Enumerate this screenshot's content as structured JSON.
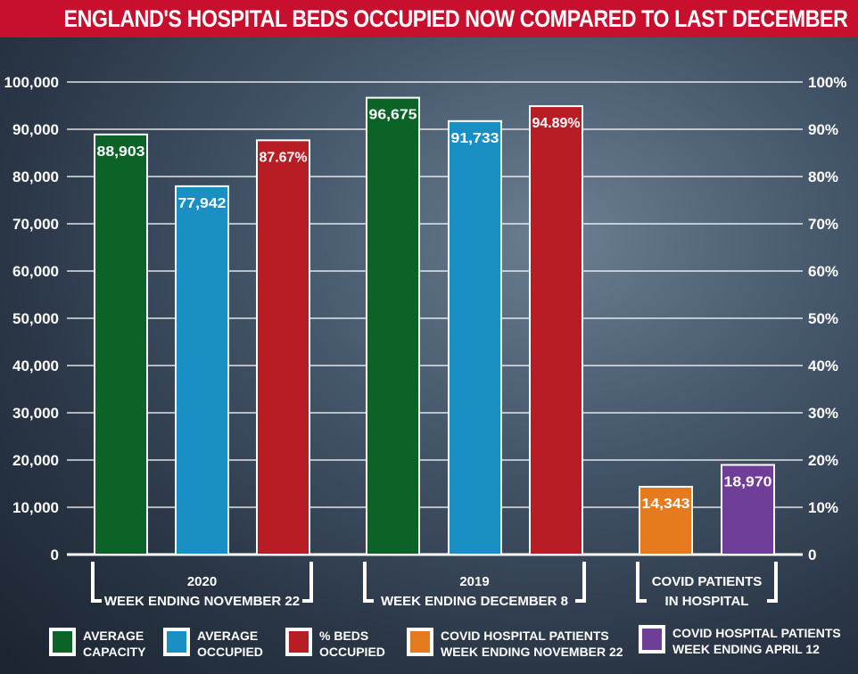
{
  "chart_data": {
    "type": "bar",
    "title": "ENGLAND'S HOSPITAL BEDS OCCUPIED NOW COMPARED TO LAST DECEMBER",
    "left_axis": {
      "range": [
        0,
        100000
      ],
      "ticks": [
        "0",
        "10,000",
        "20,000",
        "30,000",
        "40,000",
        "50,000",
        "60,000",
        "70,000",
        "80,000",
        "90,000",
        "100,000"
      ]
    },
    "right_axis": {
      "range": [
        0,
        100
      ],
      "ticks": [
        "0",
        "10%",
        "20%",
        "30%",
        "40%",
        "50%",
        "60%",
        "70%",
        "80%",
        "90%",
        "100%"
      ]
    },
    "grid": true,
    "groups": [
      {
        "label_line1": "2020",
        "label_line2": "WEEK ENDING NOVEMBER 22",
        "bars": [
          {
            "series": "AVERAGE CAPACITY",
            "value": 88903,
            "label": "88,903",
            "axis": "left"
          },
          {
            "series": "AVERAGE OCCUPIED",
            "value": 77942,
            "label": "77,942",
            "axis": "left"
          },
          {
            "series": "% BEDS OCCUPIED",
            "value": 87.67,
            "label": "87.67%",
            "axis": "right"
          }
        ]
      },
      {
        "label_line1": "2019",
        "label_line2": "WEEK ENDING DECEMBER 8",
        "bars": [
          {
            "series": "AVERAGE CAPACITY",
            "value": 96675,
            "label": "96,675",
            "axis": "left"
          },
          {
            "series": "AVERAGE OCCUPIED",
            "value": 91733,
            "label": "91,733",
            "axis": "left"
          },
          {
            "series": "% BEDS OCCUPIED",
            "value": 94.89,
            "label": "94.89%",
            "axis": "right"
          }
        ]
      },
      {
        "label_line1": "COVID PATIENTS",
        "label_line2": "IN HOSPITAL",
        "bars": [
          {
            "series": "COVID HOSPITAL PATIENTS WEEK ENDING NOVEMBER 22",
            "value": 14343,
            "label": "14,343",
            "axis": "left"
          },
          {
            "series": "COVID HOSPITAL PATIENTS WEEK ENDING APRIL 12",
            "value": 18970,
            "label": "18,970",
            "axis": "left"
          }
        ]
      }
    ],
    "legend": {
      "placement": "bottom",
      "entries": [
        {
          "line1": "AVERAGE",
          "line2": "CAPACITY",
          "series": "AVERAGE CAPACITY",
          "color": "#0b6328"
        },
        {
          "line1": "AVERAGE",
          "line2": "OCCUPIED",
          "series": "AVERAGE OCCUPIED",
          "color": "#1a8fc4"
        },
        {
          "line1": "% BEDS",
          "line2": "OCCUPIED",
          "series": "% BEDS OCCUPIED",
          "color": "#b81d26"
        },
        {
          "line1": "COVID HOSPITAL PATIENTS",
          "line2": "WEEK ENDING NOVEMBER 22",
          "series": "COVID HOSPITAL PATIENTS WEEK ENDING NOVEMBER 22",
          "color": "#e67a1e"
        },
        {
          "line1": "COVID HOSPITAL PATIENTS",
          "line2": "WEEK ENDING APRIL 12",
          "series": "COVID HOSPITAL PATIENTS WEEK ENDING APRIL 12",
          "color": "#6f3e98"
        }
      ]
    }
  }
}
